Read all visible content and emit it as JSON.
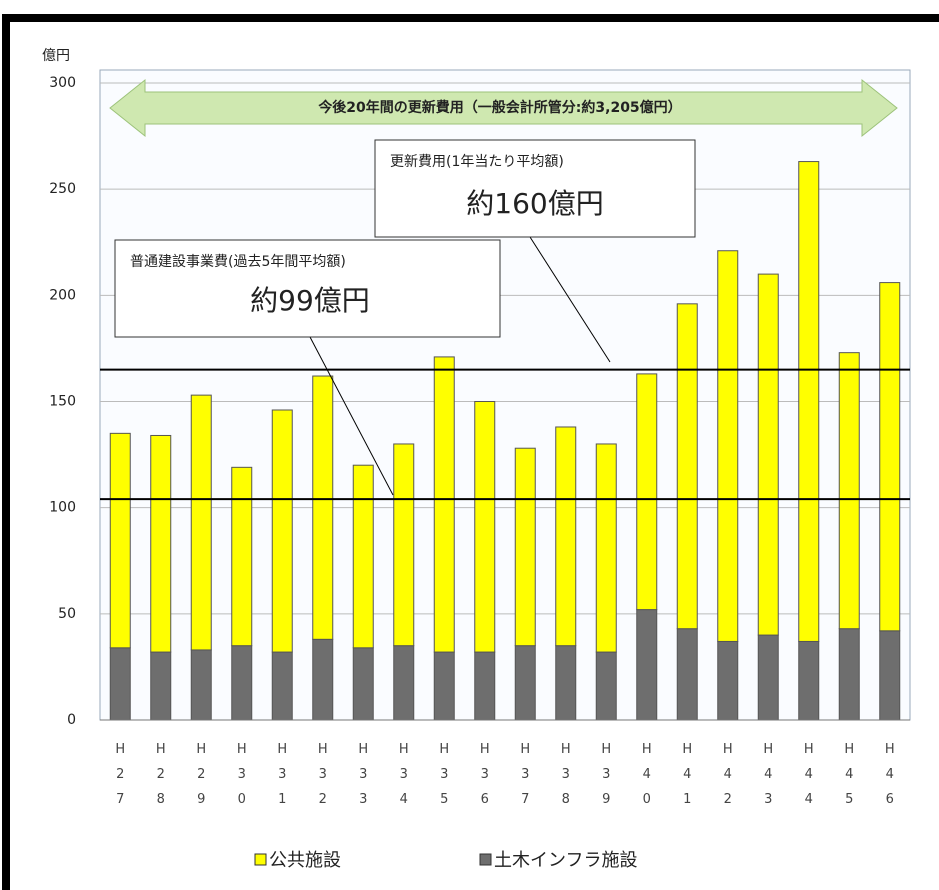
{
  "chart_data": {
    "type": "bar",
    "stacked": true,
    "y_unit": "億円",
    "banner": "今後20年間の更新費用（一般会計所管分:約3,205億円）",
    "annotations": [
      {
        "title": "更新費用(1年当たり平均額)",
        "text": "約160億円"
      },
      {
        "title": "普通建設事業費(過去5年間平均額)",
        "text": "約99億円"
      }
    ],
    "reference_lines": [
      165,
      104
    ],
    "categories": [
      "H27",
      "H28",
      "H29",
      "H30",
      "H31",
      "H32",
      "H33",
      "H34",
      "H35",
      "H36",
      "H37",
      "H38",
      "H39",
      "H40",
      "H41",
      "H42",
      "H43",
      "H44",
      "H45",
      "H46"
    ],
    "series": [
      {
        "name": "公共施設",
        "color": "#ffff00",
        "values": [
          101,
          102,
          120,
          84,
          114,
          124,
          86,
          95,
          139,
          118,
          93,
          103,
          98,
          111,
          153,
          184,
          170,
          226,
          130,
          164
        ]
      },
      {
        "name": "土木インフラ施設",
        "color": "#6e6e6e",
        "values": [
          34,
          32,
          33,
          35,
          32,
          38,
          34,
          35,
          32,
          32,
          35,
          35,
          32,
          52,
          43,
          37,
          40,
          37,
          43,
          42
        ]
      }
    ],
    "ylim": [
      0,
      300
    ],
    "yticks": [
      0,
      50,
      100,
      150,
      200,
      250,
      300
    ],
    "grid": true
  }
}
